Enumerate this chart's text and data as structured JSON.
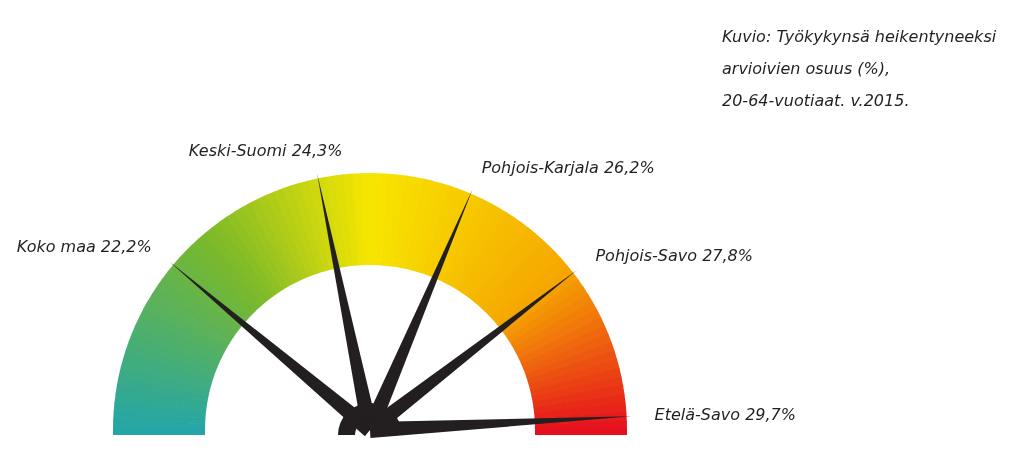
{
  "chart_data": {
    "type": "other",
    "categories": [
      "Koko maa",
      "Keski-Suomi",
      "Pohjois-Karjala",
      "Pohjois-Savo",
      "Etelä-Savo"
    ],
    "values": [
      22.2,
      24.3,
      26.2,
      27.8,
      29.7
    ],
    "value_labels": [
      "22,2%",
      "24,3%",
      "26,2%",
      "27,8%",
      "29,7%"
    ],
    "annotations": [
      "Kuvio: Työkykynsä heikentyneeksi arvioivien osuus (%), 20-64-vuotiaat. v.2015."
    ]
  }
}
